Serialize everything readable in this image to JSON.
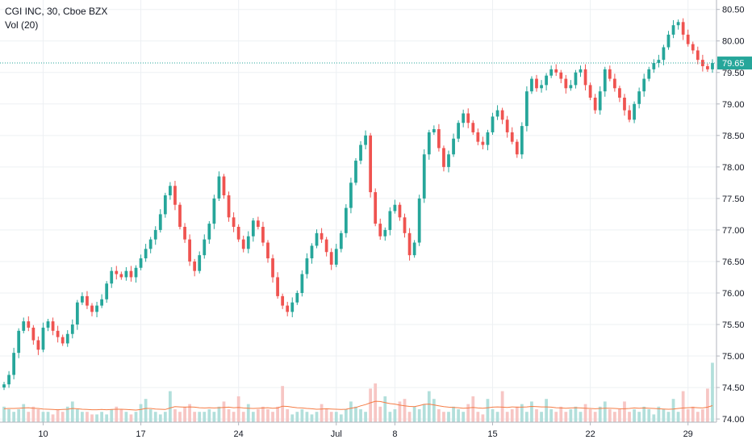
{
  "chart_data": {
    "type": "candlestick",
    "symbol_line": "CGI INC, 30, Cboe BZX",
    "indicator_line": "Vol (20)",
    "last_price": 79.65,
    "last_price_label": "79.65",
    "y_ticks": [
      "74.00",
      "74.50",
      "75.00",
      "75.50",
      "76.00",
      "76.50",
      "77.00",
      "77.50",
      "78.00",
      "78.50",
      "79.00",
      "79.50",
      "80.00",
      "80.50"
    ],
    "y_range": [
      73.95,
      80.65
    ],
    "x_ticks": [
      {
        "label": "10",
        "index": 8
      },
      {
        "label": "17",
        "index": 28
      },
      {
        "label": "24",
        "index": 48
      },
      {
        "label": "Jul",
        "index": 68
      },
      {
        "label": "8",
        "index": 80
      },
      {
        "label": "15",
        "index": 100
      },
      {
        "label": "22",
        "index": 120
      },
      {
        "label": "29",
        "index": 140
      }
    ],
    "bar_count": 146,
    "closes": [
      74.55,
      74.7,
      75.05,
      75.4,
      75.55,
      75.45,
      75.25,
      75.1,
      75.45,
      75.55,
      75.4,
      75.3,
      75.2,
      75.35,
      75.5,
      75.85,
      75.95,
      75.8,
      75.7,
      75.8,
      75.9,
      76.15,
      76.35,
      76.3,
      76.25,
      76.35,
      76.25,
      76.4,
      76.55,
      76.7,
      76.85,
      77.0,
      77.25,
      77.55,
      77.7,
      77.4,
      77.05,
      76.85,
      76.5,
      76.35,
      76.6,
      76.85,
      77.1,
      77.5,
      77.85,
      77.55,
      77.2,
      77.05,
      76.85,
      76.7,
      76.9,
      77.15,
      77.05,
      76.8,
      76.55,
      76.25,
      75.95,
      75.8,
      75.7,
      75.85,
      76.0,
      76.3,
      76.55,
      76.75,
      76.95,
      76.85,
      76.65,
      76.45,
      76.7,
      76.95,
      77.35,
      77.75,
      78.1,
      78.35,
      78.5,
      77.6,
      77.1,
      76.9,
      77.0,
      77.3,
      77.4,
      77.2,
      76.95,
      76.6,
      76.8,
      77.5,
      78.2,
      78.55,
      78.6,
      78.3,
      78.0,
      78.2,
      78.45,
      78.7,
      78.85,
      78.7,
      78.55,
      78.4,
      78.35,
      78.55,
      78.8,
      78.9,
      78.75,
      78.55,
      78.4,
      78.2,
      78.65,
      79.2,
      79.4,
      79.25,
      79.3,
      79.45,
      79.55,
      79.5,
      79.4,
      79.25,
      79.3,
      79.5,
      79.55,
      79.3,
      79.1,
      78.9,
      79.2,
      79.55,
      79.4,
      79.25,
      79.1,
      78.9,
      78.75,
      79.0,
      79.2,
      79.4,
      79.55,
      79.65,
      79.7,
      79.9,
      80.1,
      80.25,
      80.3,
      80.1,
      79.95,
      79.85,
      79.7,
      79.6,
      79.55,
      79.65
    ],
    "volume_axis_max": 40,
    "volumes": [
      6,
      5,
      4,
      5,
      7,
      4,
      6,
      5,
      4,
      4,
      3,
      5,
      4,
      6,
      8,
      5,
      4,
      4,
      3,
      3,
      4,
      3,
      5,
      6,
      5,
      4,
      3,
      4,
      7,
      9,
      5,
      4,
      3,
      4,
      12,
      5,
      4,
      6,
      7,
      4,
      4,
      4,
      5,
      4,
      6,
      8,
      5,
      4,
      10,
      4,
      7,
      4,
      5,
      6,
      5,
      4,
      6,
      14,
      5,
      3,
      4,
      5,
      4,
      3,
      4,
      7,
      5,
      4,
      4,
      3,
      5,
      8,
      6,
      5,
      4,
      13,
      15,
      6,
      10,
      4,
      5,
      8,
      9,
      4,
      6,
      5,
      7,
      12,
      9,
      5,
      4,
      4,
      6,
      5,
      4,
      7,
      10,
      4,
      3,
      9,
      5,
      4,
      12,
      4,
      5,
      6,
      7,
      4,
      8,
      5,
      4,
      9,
      5,
      4,
      6,
      4,
      5,
      6,
      4,
      7,
      5,
      4,
      6,
      8,
      5,
      4,
      5,
      8,
      4,
      5,
      4,
      6,
      5,
      3,
      6,
      5,
      4,
      9,
      4,
      12,
      5,
      6,
      4,
      5,
      13,
      23
    ],
    "volume_ma": [
      5.2,
      5.3,
      5.3,
      5.4,
      5.5,
      5.6,
      5.4,
      5.3,
      5.1,
      5.0,
      4.9,
      4.8,
      4.9,
      5.0,
      5.3,
      5.2,
      5.0,
      4.9,
      4.8,
      4.8,
      4.9,
      4.8,
      4.9,
      5.0,
      5.0,
      4.9,
      4.8,
      4.7,
      4.9,
      5.3,
      5.3,
      5.1,
      5.0,
      4.9,
      5.5,
      6.0,
      5.9,
      5.8,
      5.9,
      5.8,
      5.6,
      5.5,
      5.6,
      5.5,
      5.6,
      5.7,
      5.8,
      5.6,
      5.7,
      5.5,
      5.4,
      5.3,
      5.4,
      5.5,
      5.6,
      5.4,
      5.5,
      6.2,
      6.1,
      5.8,
      5.6,
      5.5,
      5.3,
      5.2,
      5.0,
      5.1,
      5.2,
      5.1,
      5.0,
      4.9,
      5.0,
      5.4,
      5.7,
      6.3,
      6.8,
      7.5,
      8.1,
      8.0,
      7.6,
      7.2,
      7.0,
      6.6,
      6.3,
      6.1,
      6.0,
      6.4,
      6.9,
      7.0,
      6.7,
      6.3,
      6.0,
      5.8,
      5.7,
      5.6,
      5.4,
      5.5,
      5.7,
      5.5,
      5.4,
      5.6,
      5.8,
      5.9,
      5.8,
      5.7,
      5.9,
      5.8,
      5.8,
      5.9,
      6.1,
      6.0,
      5.9,
      5.9,
      5.8,
      5.6,
      5.5,
      5.4,
      5.5,
      5.6,
      5.5,
      5.4,
      5.3,
      5.2,
      5.3,
      5.4,
      5.4,
      5.3,
      5.2,
      5.2,
      5.3,
      5.5,
      5.4,
      5.5,
      5.4,
      5.3,
      5.2,
      5.1,
      5.0,
      5.1,
      5.3,
      5.5,
      5.6,
      5.7,
      5.6,
      5.5,
      5.8,
      6.4
    ],
    "colors": {
      "up": "#26a69a",
      "down": "#ef5350",
      "vol_up": "#b2dfdb",
      "vol_down": "#f7c6c4",
      "vol_ma": "#f57c45",
      "price_line": "#26a69a",
      "grid": "#edf0f3",
      "axis_border": "#b2b5be"
    },
    "grid": true
  }
}
